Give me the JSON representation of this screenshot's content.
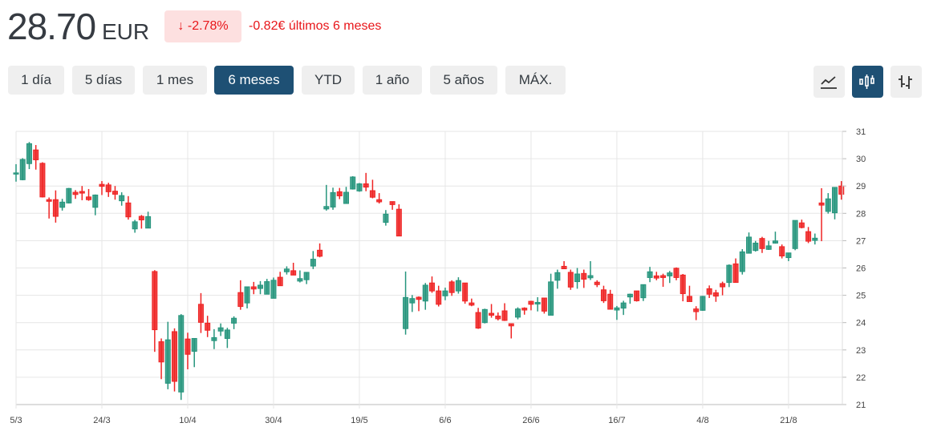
{
  "header": {
    "price": "28.70",
    "currency": "EUR",
    "change_pct": "-2.78%",
    "change_arrow": "↓",
    "change_abs": "-0.82€ últimos 6 meses",
    "down_color": "#e8161a"
  },
  "ranges": [
    {
      "label": "1 día",
      "active": false
    },
    {
      "label": "5 días",
      "active": false
    },
    {
      "label": "1 mes",
      "active": false
    },
    {
      "label": "6 meses",
      "active": true
    },
    {
      "label": "YTD",
      "active": false
    },
    {
      "label": "1 año",
      "active": false
    },
    {
      "label": "5 años",
      "active": false
    },
    {
      "label": "MÁX.",
      "active": false
    }
  ],
  "chart_types": [
    {
      "icon": "line-chart-icon",
      "active": false
    },
    {
      "icon": "candlestick-icon",
      "active": true
    },
    {
      "icon": "ohlc-bars-icon",
      "active": false
    }
  ],
  "chart_data": {
    "type": "candlestick",
    "ylim": [
      21,
      31
    ],
    "yticks": [
      21,
      22,
      23,
      24,
      25,
      26,
      27,
      28,
      29,
      30,
      31
    ],
    "xticks": [
      {
        "index": 0,
        "label": "5/3"
      },
      {
        "index": 13,
        "label": "24/3"
      },
      {
        "index": 26,
        "label": "10/4"
      },
      {
        "index": 39,
        "label": "30/4"
      },
      {
        "index": 52,
        "label": "19/5"
      },
      {
        "index": 65,
        "label": "6/6"
      },
      {
        "index": 78,
        "label": "26/6"
      },
      {
        "index": 91,
        "label": "16/7"
      },
      {
        "index": 104,
        "label": "4/8"
      },
      {
        "index": 117,
        "label": "21/8"
      }
    ],
    "grid": true,
    "up_color": "#26957d",
    "down_color": "#ef2424",
    "ohlc": [
      [
        29.45,
        29.8,
        29.16,
        29.48
      ],
      [
        29.23,
        30.02,
        29.21,
        29.97
      ],
      [
        29.82,
        30.61,
        29.62,
        30.55
      ],
      [
        30.32,
        30.5,
        29.6,
        29.96
      ],
      [
        29.83,
        29.87,
        28.58,
        28.6
      ],
      [
        28.5,
        28.58,
        27.81,
        28.44
      ],
      [
        28.5,
        28.84,
        27.66,
        27.89
      ],
      [
        28.22,
        28.53,
        28.1,
        28.41
      ],
      [
        28.38,
        28.93,
        28.36,
        28.91
      ],
      [
        28.77,
        28.85,
        28.53,
        28.69
      ],
      [
        28.8,
        29.0,
        28.48,
        28.74
      ],
      [
        28.6,
        28.89,
        28.46,
        28.5
      ],
      [
        28.22,
        28.69,
        27.93,
        28.67
      ],
      [
        29.06,
        29.18,
        28.67,
        28.99
      ],
      [
        29.04,
        29.12,
        28.6,
        28.79
      ],
      [
        28.81,
        29.0,
        28.5,
        28.7
      ],
      [
        28.46,
        28.77,
        28.28,
        28.65
      ],
      [
        28.38,
        28.63,
        27.77,
        27.87
      ],
      [
        27.43,
        27.76,
        27.29,
        27.69
      ],
      [
        27.89,
        27.94,
        27.44,
        27.76
      ],
      [
        27.46,
        28.06,
        27.46,
        27.88
      ],
      [
        25.87,
        25.92,
        22.93,
        23.74
      ],
      [
        23.3,
        23.42,
        21.93,
        22.56
      ],
      [
        21.78,
        24.03,
        21.56,
        23.37
      ],
      [
        23.67,
        23.79,
        21.48,
        21.85
      ],
      [
        21.46,
        24.31,
        21.17,
        24.26
      ],
      [
        23.4,
        23.63,
        22.29,
        22.84
      ],
      [
        22.95,
        23.42,
        22.37,
        23.42
      ],
      [
        24.67,
        25.08,
        23.62,
        24.01
      ],
      [
        23.98,
        24.25,
        23.47,
        23.72
      ],
      [
        23.34,
        23.76,
        23.03,
        23.45
      ],
      [
        23.69,
        23.97,
        23.51,
        23.81
      ],
      [
        23.42,
        23.81,
        23.07,
        23.73
      ],
      [
        23.98,
        24.23,
        23.76,
        24.16
      ],
      [
        25.1,
        25.55,
        24.47,
        24.59
      ],
      [
        24.72,
        25.31,
        24.52,
        25.31
      ],
      [
        25.31,
        25.49,
        25.04,
        25.23
      ],
      [
        25.25,
        25.52,
        25.04,
        25.37
      ],
      [
        25.04,
        25.6,
        25.04,
        25.5
      ],
      [
        24.89,
        25.65,
        24.89,
        25.55
      ],
      [
        25.66,
        25.86,
        25.35,
        25.35
      ],
      [
        25.86,
        26.06,
        25.76,
        25.96
      ],
      [
        25.9,
        26.19,
        25.74,
        25.74
      ],
      [
        25.52,
        25.91,
        25.47,
        25.61
      ],
      [
        25.57,
        25.84,
        25.41,
        25.84
      ],
      [
        26.07,
        26.62,
        25.96,
        26.32
      ],
      [
        26.65,
        26.9,
        26.39,
        26.43
      ],
      [
        28.16,
        29.04,
        28.1,
        28.25
      ],
      [
        28.23,
        28.94,
        28.13,
        28.76
      ],
      [
        28.79,
        28.93,
        28.52,
        28.64
      ],
      [
        28.36,
        28.97,
        28.36,
        28.77
      ],
      [
        28.89,
        29.36,
        28.87,
        29.33
      ],
      [
        28.82,
        29.11,
        28.79,
        29.08
      ],
      [
        29.08,
        29.48,
        28.81,
        28.96
      ],
      [
        28.83,
        29.23,
        28.55,
        28.59
      ],
      [
        28.5,
        28.74,
        28.36,
        28.42
      ],
      [
        27.67,
        28.12,
        27.55,
        27.97
      ],
      [
        28.43,
        28.43,
        28.13,
        28.32
      ],
      [
        28.15,
        28.33,
        27.17,
        27.17
      ],
      [
        23.78,
        25.87,
        23.56,
        24.92
      ],
      [
        24.72,
        25.01,
        24.39,
        24.88
      ],
      [
        24.93,
        24.96,
        24.42,
        24.85
      ],
      [
        24.79,
        25.45,
        24.47,
        25.37
      ],
      [
        25.45,
        25.69,
        25.09,
        25.16
      ],
      [
        25.16,
        25.35,
        24.59,
        24.67
      ],
      [
        24.98,
        25.28,
        24.82,
        25.16
      ],
      [
        25.49,
        25.55,
        24.98,
        25.1
      ],
      [
        25.16,
        25.66,
        25.06,
        25.54
      ],
      [
        25.45,
        25.45,
        24.69,
        24.79
      ],
      [
        24.72,
        24.88,
        24.6,
        24.64
      ],
      [
        24.37,
        24.54,
        23.77,
        23.8
      ],
      [
        24.0,
        24.51,
        23.97,
        24.48
      ],
      [
        24.34,
        24.68,
        24.18,
        24.27
      ],
      [
        24.24,
        24.37,
        24.08,
        24.14
      ],
      [
        24.43,
        24.71,
        24.06,
        24.08
      ],
      [
        23.96,
        23.96,
        23.42,
        23.88
      ],
      [
        24.2,
        24.56,
        24.12,
        24.5
      ],
      [
        24.53,
        24.56,
        24.29,
        24.46
      ],
      [
        24.78,
        24.8,
        24.45,
        24.67
      ],
      [
        24.68,
        24.93,
        24.41,
        24.74
      ],
      [
        24.9,
        24.9,
        24.33,
        24.42
      ],
      [
        24.27,
        25.79,
        24.27,
        25.49
      ],
      [
        25.55,
        25.94,
        25.24,
        25.83
      ],
      [
        26.06,
        26.25,
        25.97,
        25.97
      ],
      [
        25.84,
        25.94,
        25.2,
        25.3
      ],
      [
        25.5,
        26.0,
        25.24,
        25.78
      ],
      [
        25.8,
        25.94,
        25.27,
        25.59
      ],
      [
        25.64,
        26.25,
        25.56,
        25.72
      ],
      [
        25.48,
        25.55,
        25.3,
        25.39
      ],
      [
        25.2,
        25.35,
        24.72,
        24.8
      ],
      [
        25.04,
        25.2,
        24.49,
        24.49
      ],
      [
        24.46,
        24.61,
        24.1,
        24.54
      ],
      [
        24.53,
        24.8,
        24.28,
        24.72
      ],
      [
        24.94,
        25.06,
        24.69,
        25.04
      ],
      [
        25.16,
        25.16,
        24.77,
        24.8
      ],
      [
        24.91,
        25.39,
        24.79,
        25.39
      ],
      [
        25.65,
        26.04,
        25.48,
        25.86
      ],
      [
        25.71,
        25.86,
        25.55,
        25.63
      ],
      [
        25.72,
        25.79,
        25.31,
        25.65
      ],
      [
        25.71,
        25.89,
        25.45,
        25.82
      ],
      [
        25.99,
        26.02,
        25.55,
        25.65
      ],
      [
        25.74,
        25.78,
        24.78,
        25.06
      ],
      [
        24.96,
        25.35,
        24.77,
        24.77
      ],
      [
        24.5,
        24.6,
        24.09,
        24.4
      ],
      [
        24.45,
        24.98,
        24.43,
        24.96
      ],
      [
        25.24,
        25.36,
        24.9,
        25.04
      ],
      [
        25.09,
        25.2,
        24.76,
        24.97
      ],
      [
        25.43,
        25.5,
        25.0,
        25.31
      ],
      [
        25.47,
        26.13,
        25.3,
        26.1
      ],
      [
        26.15,
        26.35,
        25.47,
        25.47
      ],
      [
        25.87,
        26.69,
        25.76,
        26.59
      ],
      [
        26.54,
        27.3,
        26.54,
        27.13
      ],
      [
        26.64,
        26.99,
        26.6,
        26.91
      ],
      [
        27.08,
        27.14,
        26.55,
        26.71
      ],
      [
        26.68,
        26.99,
        26.66,
        26.81
      ],
      [
        26.91,
        27.33,
        26.89,
        26.99
      ],
      [
        26.78,
        26.86,
        26.35,
        26.44
      ],
      [
        26.38,
        26.55,
        26.25,
        26.55
      ],
      [
        26.71,
        27.74,
        26.65,
        27.74
      ],
      [
        27.65,
        27.77,
        27.45,
        27.48
      ],
      [
        27.33,
        27.5,
        26.91,
        26.98
      ],
      [
        27.01,
        27.26,
        26.86,
        27.09
      ],
      [
        28.38,
        28.92,
        26.98,
        28.3
      ],
      [
        28.07,
        28.74,
        27.99,
        28.53
      ],
      [
        28.02,
        28.95,
        27.78,
        28.95
      ],
      [
        29.0,
        29.18,
        28.5,
        28.7
      ]
    ]
  }
}
